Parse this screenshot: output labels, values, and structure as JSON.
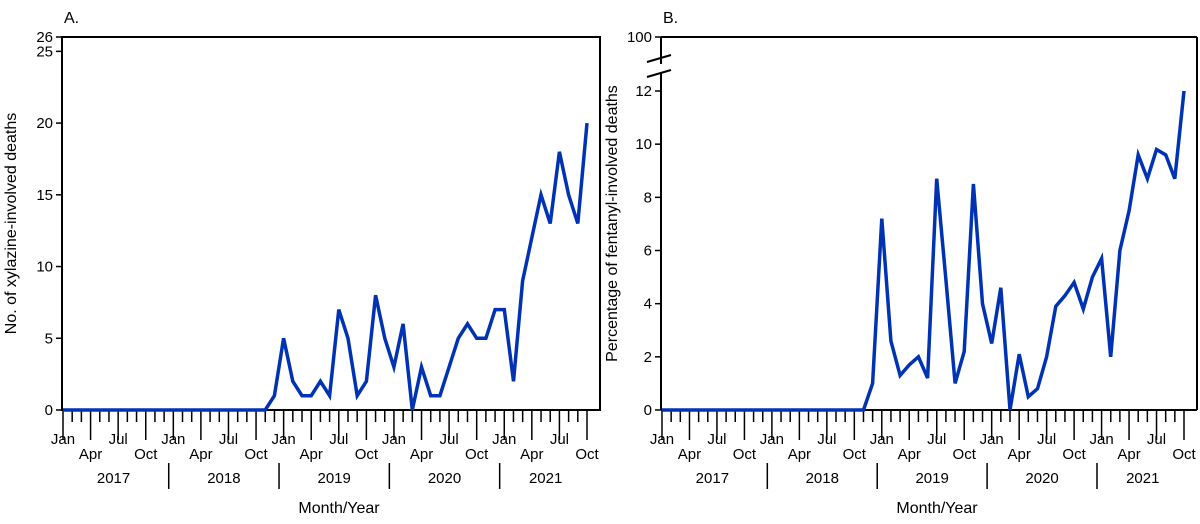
{
  "chart_data": [
    {
      "type": "line",
      "panel_label": "A.",
      "xlabel": "Month/Year",
      "ylabel": "No. of xylazine-involved deaths",
      "ylim": [
        0,
        26
      ],
      "yticks": [
        0,
        5,
        10,
        15,
        20,
        25,
        26
      ],
      "x_start": "2017-01",
      "x_end": "2021-10",
      "month_tick_labels": [
        "Jan",
        "Apr",
        "Jul",
        "Oct"
      ],
      "years": [
        "2017",
        "2018",
        "2019",
        "2020",
        "2021"
      ],
      "grid": false,
      "line_color": "#0033b3",
      "values": [
        0,
        0,
        0,
        0,
        0,
        0,
        0,
        0,
        0,
        0,
        0,
        0,
        0,
        0,
        0,
        0,
        0,
        0,
        0,
        0,
        0,
        0,
        0,
        1,
        5,
        2,
        1,
        1,
        2,
        1,
        7,
        5,
        1,
        2,
        8,
        5,
        3,
        6,
        0,
        3,
        1,
        1,
        3,
        5,
        6,
        5,
        5,
        7,
        7,
        2,
        9,
        12,
        15,
        13,
        18,
        15,
        13,
        20
      ]
    },
    {
      "type": "line",
      "panel_label": "B.",
      "xlabel": "Month/Year",
      "ylabel": "Percentage of fentanyl-involved deaths",
      "ylim": [
        0,
        12
      ],
      "yticks": [
        0,
        2,
        4,
        6,
        8,
        10,
        12
      ],
      "axis_break_label": "100",
      "x_start": "2017-01",
      "x_end": "2021-10",
      "month_tick_labels": [
        "Jan",
        "Apr",
        "Jul",
        "Oct"
      ],
      "years": [
        "2017",
        "2018",
        "2019",
        "2020",
        "2021"
      ],
      "grid": false,
      "line_color": "#0033b3",
      "values": [
        0,
        0,
        0,
        0,
        0,
        0,
        0,
        0,
        0,
        0,
        0,
        0,
        0,
        0,
        0,
        0,
        0,
        0,
        0,
        0,
        0,
        0,
        0,
        1.0,
        7.2,
        2.6,
        1.3,
        1.7,
        2.0,
        1.2,
        8.7,
        4.9,
        1.0,
        2.2,
        8.5,
        4.0,
        2.5,
        4.6,
        0,
        2.1,
        0.5,
        0.8,
        2.0,
        3.9,
        4.3,
        4.8,
        3.8,
        5.0,
        5.7,
        2.0,
        6.0,
        7.5,
        9.6,
        8.7,
        9.8,
        9.6,
        8.7,
        12.0
      ]
    }
  ]
}
